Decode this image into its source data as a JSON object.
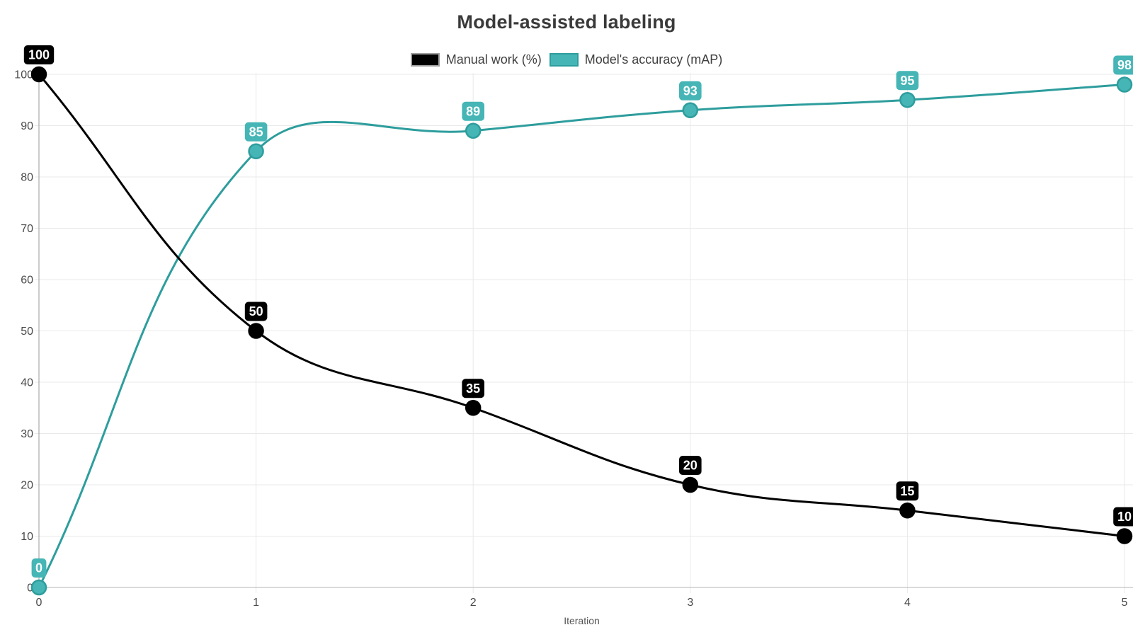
{
  "chart_data": {
    "type": "line",
    "title": "Model-assisted labeling",
    "xlabel": "Iteration",
    "ylabel": "",
    "x": [
      0,
      1,
      2,
      3,
      4,
      5
    ],
    "xlim": [
      0,
      5
    ],
    "ylim": [
      0,
      100
    ],
    "xticks": [
      0,
      1,
      2,
      3,
      4,
      5
    ],
    "yticks": [
      0,
      10,
      20,
      30,
      40,
      50,
      60,
      70,
      80,
      90,
      100
    ],
    "grid": true,
    "legend_position": "top",
    "line_tension": 0.4,
    "series": [
      {
        "name": "Manual work (%)",
        "values": [
          100,
          50,
          35,
          20,
          15,
          10
        ],
        "point_labels": [
          "100",
          "50",
          "35",
          "20",
          "15",
          "10"
        ],
        "line_color": "#000000",
        "point_fill": "#000000",
        "point_border": "#000000",
        "label_bg": "#000000",
        "label_text_color": "#ffffff",
        "swatch_fill": "#000000",
        "swatch_border": "#9e9e9e"
      },
      {
        "name": "Model's accuracy (mAP)",
        "values": [
          0,
          85,
          89,
          93,
          95,
          98
        ],
        "point_labels": [
          "0",
          "85",
          "89",
          "93",
          "95",
          "98"
        ],
        "line_color": "#2e9d9d",
        "point_fill": "#46b5b6",
        "point_border": "#2e9d9d",
        "label_bg": "#46b5b6",
        "label_text_color": "#ffffff",
        "swatch_fill": "#46b5b6",
        "swatch_border": "#2e9d9d"
      }
    ],
    "colors": {
      "background": "#ffffff",
      "grid": "#e9e9e9",
      "y_axis_line": "#9a9a9a",
      "x_axis_line": "#b5b5b5",
      "tick_text": "#4a4a4a",
      "axis_title_text": "#555555",
      "title_text": "#3a3a3a",
      "legend_text": "#3f3f3f"
    }
  }
}
